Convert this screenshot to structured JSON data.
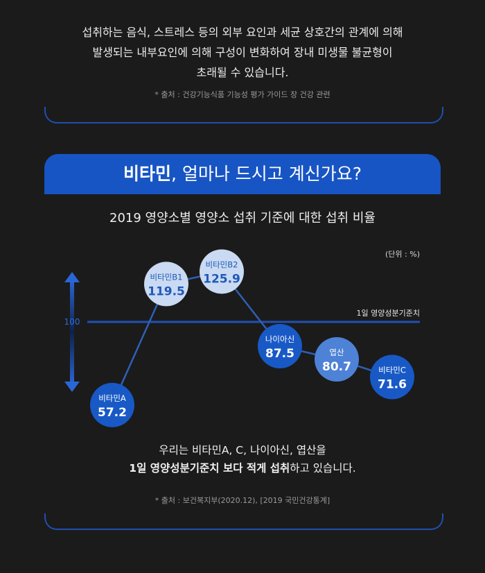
{
  "intro": {
    "line1": "섭취하는 음식, 스트레스 등의 외부 요인과 세균 상호간의 관계에 의해",
    "line2": "발생되는 내부요인에 의해 구성이 변화하여 장내 미생물 불균형이",
    "line3": "초래될 수 있습니다.",
    "source": "* 출처 : 건강기능식품 기능성 평가 가이드 장 건강 관련"
  },
  "banner": {
    "bold": "비타민",
    "rest": ", 얼마나 드시고 계신가요?"
  },
  "chart_data": {
    "type": "line",
    "title": "2019 영양소별 영양소 섭취 기준에 대한 섭취 비율",
    "unit": "(단위 : %)",
    "categories": [
      "비타민A",
      "비타민B1",
      "비타민B2",
      "나이아신",
      "엽산",
      "비타민C"
    ],
    "values": [
      57.2,
      119.5,
      125.9,
      87.5,
      80.7,
      71.6
    ],
    "value_labels": [
      "57.2",
      "119.5",
      "125.9",
      "87.5",
      "80.7",
      "71.6"
    ],
    "reference": {
      "value": 100,
      "label": "1일 영양성분기준치",
      "tick_label": "100"
    },
    "marker_colors": [
      "#1859c6",
      "#c9daf2",
      "#c9daf2",
      "#1859c6",
      "#4d82d6",
      "#1859c6"
    ],
    "label_colors": [
      "#ffffff",
      "#2059b8",
      "#2059b8",
      "#ffffff",
      "#ffffff",
      "#ffffff"
    ],
    "line_color": "#2f5fb8",
    "ylim": [
      50,
      135
    ],
    "grid": false,
    "legend": "none"
  },
  "conclusion": {
    "line1": "우리는 비타민A, C, 나이아신, 엽산을",
    "bold": "1일 영양성분기준치 보다 적게 섭취",
    "rest": "하고 있습니다.",
    "source": "* 출처 : 보건복지부(2020.12), [2019 국민건강통계]"
  },
  "colors": {
    "background": "#1b1b1b",
    "accent": "#1855c4",
    "frame": "#1f4fb0"
  },
  "icons": {
    "axis": "double-arrow-icon"
  }
}
